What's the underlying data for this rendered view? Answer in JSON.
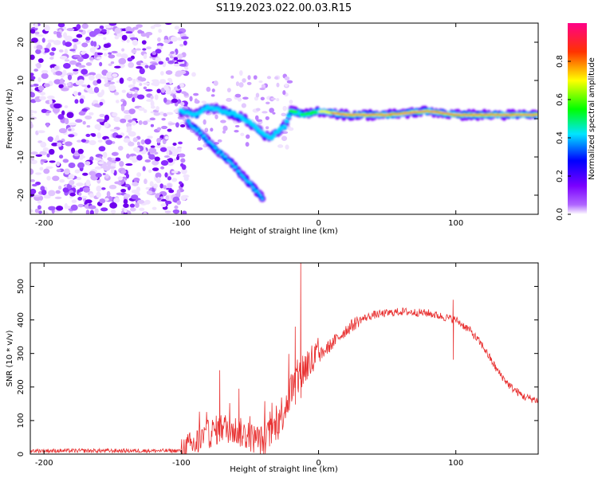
{
  "title": "S119.2023.022.00.03.R15",
  "chart_data": [
    {
      "type": "heatmap",
      "xlabel": "Height of straight line (km)",
      "ylabel": "Frequency (Hz)",
      "xlim": [
        -210,
        160
      ],
      "ylim": [
        -25,
        25
      ],
      "x_ticks": [
        -200,
        -100,
        0,
        100
      ],
      "y_ticks": [
        -20,
        -10,
        0,
        10,
        20
      ],
      "colorbar": {
        "label": "Normalized spectral amplitude",
        "range": [
          0,
          1
        ],
        "ticks": [
          0.0,
          0.2,
          0.4,
          0.6,
          0.8
        ],
        "colormap": [
          "#ffffff",
          "#8800ff",
          "#0000ff",
          "#00e5ff",
          "#00ff00",
          "#ffff00",
          "#ff0000",
          "#ff0088"
        ]
      },
      "features": {
        "noise_region_x": [
          -210,
          -100
        ],
        "main_trace": [
          {
            "x": -100,
            "y": 2
          },
          {
            "x": -90,
            "y": 1
          },
          {
            "x": -80,
            "y": 3
          },
          {
            "x": -70,
            "y": 2
          },
          {
            "x": -60,
            "y": 1
          },
          {
            "x": -50,
            "y": -1
          },
          {
            "x": -40,
            "y": -4
          },
          {
            "x": -35,
            "y": -5
          },
          {
            "x": -25,
            "y": -2
          },
          {
            "x": -20,
            "y": 2
          },
          {
            "x": -10,
            "y": 1
          },
          {
            "x": 0,
            "y": 2
          },
          {
            "x": 20,
            "y": 1
          },
          {
            "x": 50,
            "y": 1
          },
          {
            "x": 80,
            "y": 2
          },
          {
            "x": 100,
            "y": 1
          },
          {
            "x": 130,
            "y": 1
          },
          {
            "x": 160,
            "y": 1
          }
        ],
        "lower_branch": [
          {
            "x": -95,
            "y": -1
          },
          {
            "x": -85,
            "y": -4
          },
          {
            "x": -75,
            "y": -8
          },
          {
            "x": -65,
            "y": -11
          },
          {
            "x": -55,
            "y": -15
          },
          {
            "x": -45,
            "y": -19
          },
          {
            "x": -40,
            "y": -21
          }
        ]
      }
    },
    {
      "type": "line",
      "xlabel": "Height of straight line (km)",
      "ylabel": "SNR (10 * v/v)",
      "xlim": [
        -210,
        160
      ],
      "ylim": [
        0,
        570
      ],
      "x_ticks": [
        -200,
        -100,
        0,
        100
      ],
      "y_ticks": [
        0,
        100,
        200,
        300,
        400,
        500
      ],
      "color": "#e83030",
      "envelope": [
        {
          "x": -210,
          "y": 10
        },
        {
          "x": -100,
          "y": 10
        },
        {
          "x": -90,
          "y": 30
        },
        {
          "x": -80,
          "y": 60
        },
        {
          "x": -70,
          "y": 80
        },
        {
          "x": -60,
          "y": 70
        },
        {
          "x": -50,
          "y": 50
        },
        {
          "x": -40,
          "y": 40
        },
        {
          "x": -30,
          "y": 90
        },
        {
          "x": -20,
          "y": 190
        },
        {
          "x": -10,
          "y": 260
        },
        {
          "x": 0,
          "y": 290
        },
        {
          "x": 10,
          "y": 330
        },
        {
          "x": 20,
          "y": 370
        },
        {
          "x": 30,
          "y": 400
        },
        {
          "x": 40,
          "y": 415
        },
        {
          "x": 60,
          "y": 425
        },
        {
          "x": 80,
          "y": 420
        },
        {
          "x": 100,
          "y": 400
        },
        {
          "x": 110,
          "y": 370
        },
        {
          "x": 120,
          "y": 320
        },
        {
          "x": 130,
          "y": 250
        },
        {
          "x": 140,
          "y": 200
        },
        {
          "x": 150,
          "y": 170
        },
        {
          "x": 160,
          "y": 160
        }
      ],
      "spikes": [
        {
          "x": -72,
          "y": 250
        },
        {
          "x": -58,
          "y": 195
        },
        {
          "x": -17,
          "y": 380
        },
        {
          "x": -13,
          "y": 570
        },
        {
          "x": 98,
          "y": 460
        }
      ]
    }
  ]
}
